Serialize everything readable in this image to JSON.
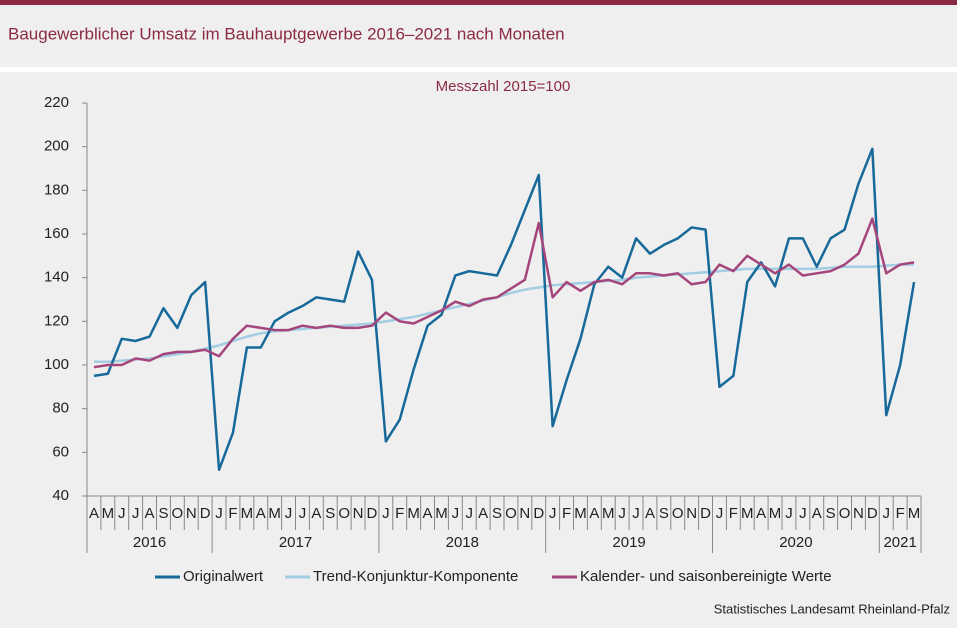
{
  "chart_data": {
    "type": "line",
    "title": "Baugewerblicher Umsatz im Bauhauptgewerbe 2016–2021 nach Monaten",
    "subtitle": "Messzahl 2015=100",
    "source": "Statistisches Landesamt Rheinland-Pfalz",
    "groups": [
      {
        "label": "2016",
        "categories": [
          "A",
          "M",
          "J",
          "J",
          "A",
          "S",
          "O",
          "N",
          "D"
        ]
      },
      {
        "label": "2017",
        "categories": [
          "J",
          "F",
          "M",
          "A",
          "M",
          "J",
          "J",
          "A",
          "S",
          "O",
          "N",
          "D"
        ]
      },
      {
        "label": "2018",
        "categories": [
          "J",
          "F",
          "M",
          "A",
          "M",
          "J",
          "J",
          "A",
          "S",
          "O",
          "N",
          "D"
        ]
      },
      {
        "label": "2019",
        "categories": [
          "J",
          "F",
          "M",
          "A",
          "M",
          "J",
          "J",
          "A",
          "S",
          "O",
          "N",
          "D"
        ]
      },
      {
        "label": "2020",
        "categories": [
          "J",
          "F",
          "M",
          "A",
          "M",
          "J",
          "J",
          "A",
          "S",
          "O",
          "N",
          "D"
        ]
      },
      {
        "label": "2021",
        "categories": [
          "J",
          "F",
          "M"
        ]
      }
    ],
    "ylim": [
      40,
      220
    ],
    "yticks": [
      40,
      60,
      80,
      100,
      120,
      140,
      160,
      180,
      200,
      220
    ],
    "grid": false,
    "legend": "bottom",
    "series": [
      {
        "name": "Originalwert",
        "color": "#17699a",
        "values": [
          95,
          96,
          112,
          111,
          113,
          126,
          117,
          132,
          138,
          52,
          69,
          108,
          108,
          120,
          124,
          127,
          131,
          130,
          129,
          152,
          139,
          65,
          75,
          98,
          118,
          123,
          141,
          143,
          142,
          141,
          155,
          171,
          187,
          72,
          93,
          112,
          137,
          145,
          140,
          158,
          151,
          155,
          158,
          163,
          162,
          90,
          95,
          138,
          147,
          136,
          158,
          158,
          145,
          158,
          162,
          183,
          199,
          77,
          100,
          138
        ]
      },
      {
        "name": "Trend-Konjunktur-Komponente",
        "color": "#a3cde3",
        "values": [
          101.5,
          101.5,
          102,
          102.5,
          103,
          104,
          105,
          106,
          107.5,
          109,
          111,
          113,
          114.5,
          115.5,
          116,
          116.5,
          117,
          117.5,
          118,
          118.5,
          119,
          120,
          121,
          122,
          123.5,
          125,
          126.5,
          128,
          129.5,
          131,
          133,
          134.5,
          135.5,
          136.5,
          137,
          137.5,
          138,
          138.5,
          139,
          140,
          140.5,
          141,
          141.5,
          142,
          142.5,
          143,
          143.5,
          144,
          144,
          144,
          144,
          144,
          144,
          144.5,
          145,
          145,
          145,
          145.5,
          146,
          146
        ]
      },
      {
        "name": "Kalender- und saisonbereinigte Werte",
        "color": "#a4467c",
        "values": [
          99,
          100,
          100,
          103,
          102,
          105,
          106,
          106,
          107,
          104,
          112,
          118,
          117,
          116,
          116,
          118,
          117,
          118,
          117,
          117,
          118,
          124,
          120,
          119,
          122,
          125,
          129,
          127,
          130,
          131,
          135,
          139,
          165,
          131,
          138,
          134,
          138,
          139,
          137,
          142,
          142,
          141,
          142,
          137,
          138,
          146,
          143,
          150,
          146,
          142,
          146,
          141,
          142,
          143,
          146,
          151,
          167,
          142,
          146,
          147
        ]
      }
    ]
  }
}
